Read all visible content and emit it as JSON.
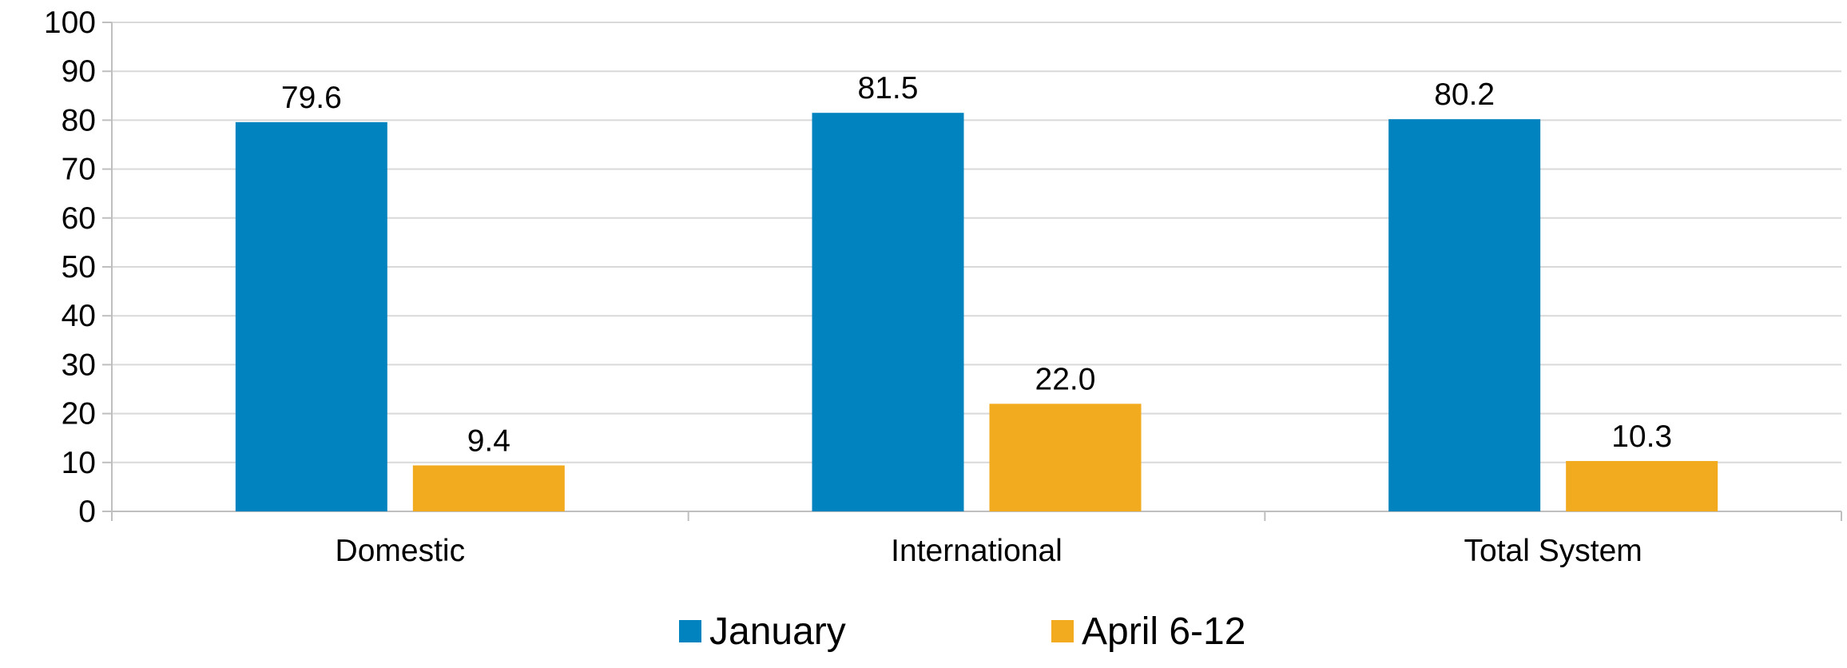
{
  "chart_data": {
    "type": "bar",
    "title": "",
    "xlabel": "",
    "ylabel": "",
    "categories": [
      "Domestic",
      "International",
      "Total System"
    ],
    "series": [
      {
        "name": "January",
        "values": [
          79.6,
          81.5,
          80.2
        ],
        "labels": [
          "79.6",
          "81.5",
          "80.2"
        ],
        "color": "#0083BE"
      },
      {
        "name": "April 6-12",
        "values": [
          9.4,
          22.0,
          10.3
        ],
        "labels": [
          "9.4",
          "22.0",
          "10.3"
        ],
        "color": "#F2AA1E"
      }
    ],
    "ylim": [
      0,
      100
    ],
    "yticks": [
      "0",
      "10",
      "20",
      "30",
      "40",
      "50",
      "60",
      "70",
      "80",
      "90",
      "100"
    ],
    "grid": true,
    "legend": "bottom-center",
    "gridline_color": "#D9D9D9",
    "axis_color": "#BFBFBF"
  }
}
